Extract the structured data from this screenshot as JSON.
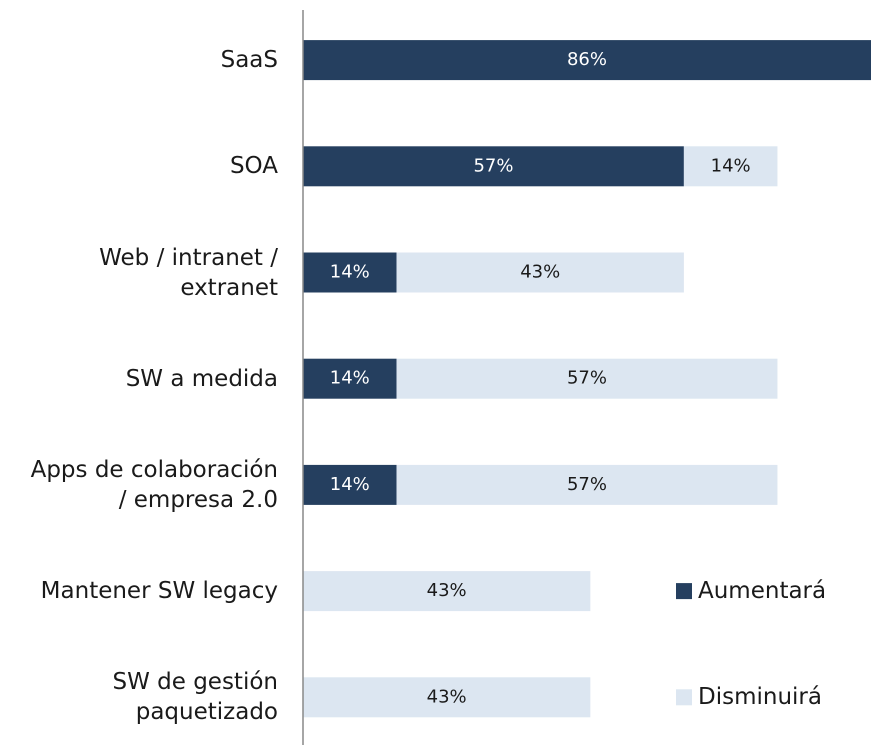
{
  "chart_data": {
    "type": "stacked_bar_horizontal",
    "categories": [
      "SaaS",
      "SOA",
      "Web / intranet /\nextranet",
      "SW a medida",
      "Apps de colaboración\n/ empresa 2.0",
      "Mantener SW legacy",
      "SW de gestión\npaquetizado"
    ],
    "series": [
      {
        "name": "Aumentará",
        "color": "#253f5f",
        "label_color": "#ffffff",
        "values": [
          86,
          57,
          14,
          14,
          14,
          null,
          null
        ],
        "value_labels": [
          "86%",
          "57%",
          "14%",
          "14%",
          "14%",
          null,
          null
        ]
      },
      {
        "name": "Disminuirá",
        "color": "#dce6f1",
        "label_color": "#1a1a1a",
        "values": [
          null,
          14,
          43,
          57,
          57,
          43,
          43
        ],
        "value_labels": [
          null,
          "14%",
          "43%",
          "57%",
          "57%",
          "43%",
          "43%"
        ]
      }
    ],
    "xlim": [
      0,
      85
    ],
    "legend": "right"
  }
}
